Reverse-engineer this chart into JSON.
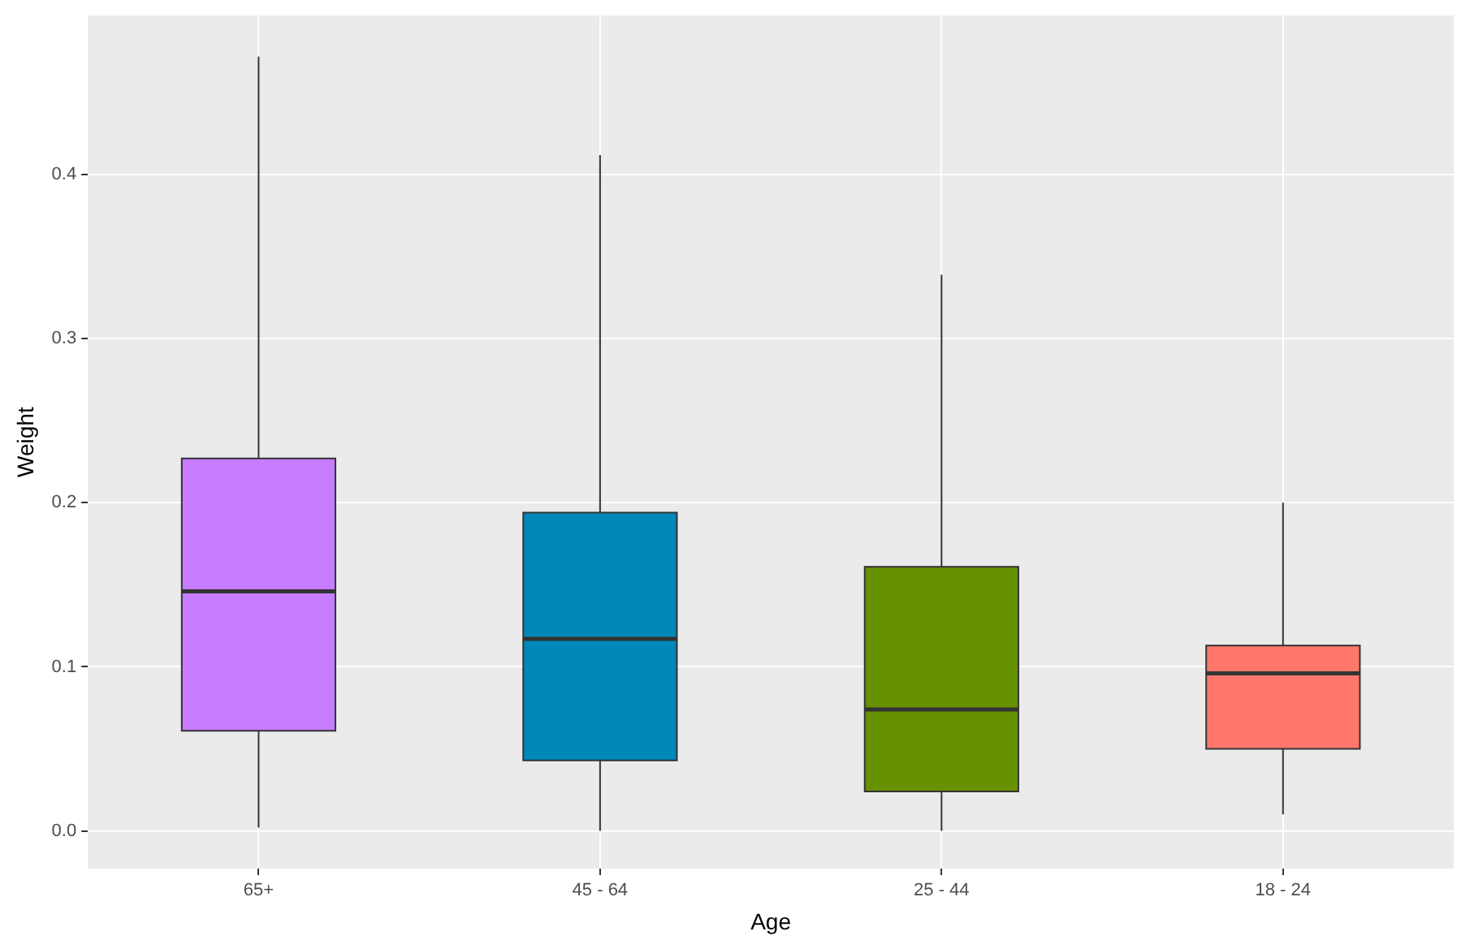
{
  "chart_data": {
    "type": "box",
    "xlabel": "Age",
    "ylabel": "Weight",
    "categories": [
      "65+",
      "45 - 64",
      "25 - 44",
      "18 - 24"
    ],
    "boxes": [
      {
        "low": 0.002,
        "q1": 0.061,
        "median": 0.146,
        "q3": 0.227,
        "high": 0.472
      },
      {
        "low": 0.0,
        "q1": 0.043,
        "median": 0.117,
        "q3": 0.194,
        "high": 0.412
      },
      {
        "low": 0.0,
        "q1": 0.024,
        "median": 0.074,
        "q3": 0.161,
        "high": 0.339
      },
      {
        "low": 0.01,
        "q1": 0.05,
        "median": 0.096,
        "q3": 0.113,
        "high": 0.2
      }
    ],
    "colors": [
      "#c77cff",
      "#0088b8",
      "#679100",
      "#ff776b"
    ],
    "ylim": [
      -0.023,
      0.497
    ],
    "yticks": [
      {
        "value": 0,
        "label": "0.0"
      },
      0.1,
      0.2,
      0.3,
      0.4
    ],
    "grid": true
  }
}
